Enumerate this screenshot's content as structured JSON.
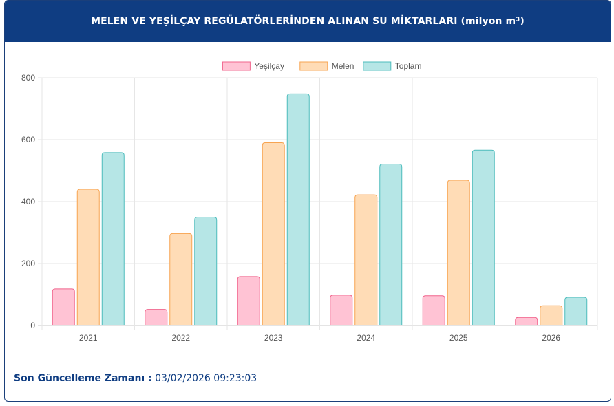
{
  "header": {
    "title": "MELEN VE YEŞİLÇAY REGÜLATÖRLERİNDEN ALINAN SU MİKTARLARI (milyon m³)"
  },
  "footer": {
    "label": "Son Güncelleme Zamanı :",
    "value": "03/02/2026 09:23:03"
  },
  "chart_data": {
    "type": "bar",
    "title": "",
    "xlabel": "",
    "ylabel": "",
    "categories": [
      "2021",
      "2022",
      "2023",
      "2024",
      "2025",
      "2026"
    ],
    "ylim": [
      0,
      800
    ],
    "yticks": [
      0,
      200,
      400,
      600,
      800
    ],
    "grid": true,
    "legend_position": "top-center",
    "series": [
      {
        "name": "Yeşilçay",
        "values": [
          118,
          52,
          158,
          98,
          96,
          26
        ],
        "fill": "#ffc3d4",
        "stroke": "#f0648c"
      },
      {
        "name": "Melen",
        "values": [
          440,
          297,
          590,
          422,
          469,
          64
        ],
        "fill": "#ffdcb6",
        "stroke": "#f7a451"
      },
      {
        "name": "Toplam",
        "values": [
          558,
          350,
          748,
          521,
          566,
          91
        ],
        "fill": "#b6e6e6",
        "stroke": "#4cbcbc"
      }
    ]
  }
}
